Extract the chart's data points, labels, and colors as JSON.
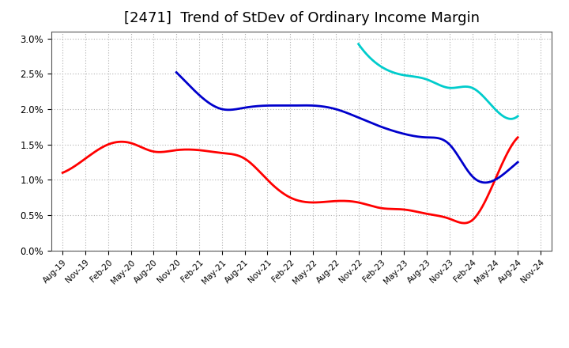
{
  "title": "[2471]  Trend of StDev of Ordinary Income Margin",
  "title_fontsize": 13,
  "ylim": [
    0.0,
    0.031
  ],
  "yticks": [
    0.0,
    0.005,
    0.01,
    0.015,
    0.02,
    0.025,
    0.03
  ],
  "yticklabels": [
    "0.0%",
    "0.5%",
    "1.0%",
    "1.5%",
    "2.0%",
    "2.5%",
    "3.0%"
  ],
  "x_labels": [
    "Aug-19",
    "Nov-19",
    "Feb-20",
    "May-20",
    "Aug-20",
    "Nov-20",
    "Feb-21",
    "May-21",
    "Aug-21",
    "Nov-21",
    "Feb-22",
    "May-22",
    "Aug-22",
    "Nov-22",
    "Feb-23",
    "May-23",
    "Aug-23",
    "Nov-23",
    "Feb-24",
    "May-24",
    "Aug-24",
    "Nov-24"
  ],
  "series_3y": [
    0.011,
    0.013,
    0.015,
    0.0152,
    0.014,
    0.0142,
    0.0142,
    0.0138,
    0.013,
    0.01,
    0.0075,
    0.0068,
    0.007,
    0.0068,
    0.006,
    0.0058,
    0.0052,
    0.0045,
    0.0043,
    0.01,
    0.016,
    null
  ],
  "series_5y": [
    null,
    null,
    null,
    null,
    null,
    0.0252,
    0.022,
    0.02,
    0.0202,
    0.0205,
    0.0205,
    0.0205,
    0.02,
    0.0188,
    0.0175,
    0.0165,
    0.016,
    0.015,
    0.0105,
    0.01,
    0.0125,
    null
  ],
  "series_7y": [
    null,
    null,
    null,
    null,
    null,
    null,
    null,
    null,
    null,
    null,
    null,
    null,
    null,
    0.0292,
    0.026,
    0.0248,
    0.0242,
    0.023,
    0.023,
    0.02,
    0.019,
    null
  ],
  "series_10y": [
    null,
    null,
    null,
    null,
    null,
    null,
    null,
    null,
    null,
    null,
    null,
    null,
    null,
    null,
    null,
    null,
    null,
    null,
    null,
    null,
    null,
    null
  ],
  "color_3y": "#ff0000",
  "color_5y": "#0000cc",
  "color_7y": "#00cccc",
  "color_10y": "#006600",
  "linewidth": 2.0,
  "background_color": "#ffffff",
  "grid_color": "#b0b0b0"
}
